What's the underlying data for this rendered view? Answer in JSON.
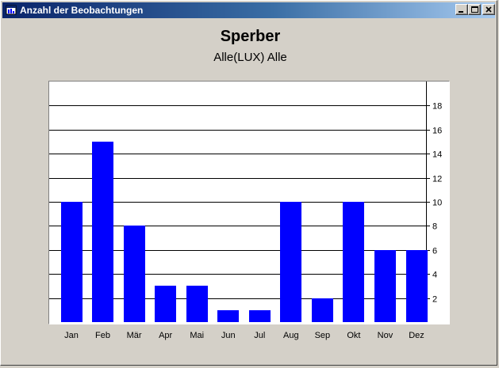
{
  "window": {
    "title": "Anzahl der Beobachtungen",
    "icon": "app-icon",
    "controls": [
      "minimize-icon",
      "maximize-icon",
      "close-icon"
    ]
  },
  "colors": {
    "bar": "#0000ff",
    "plot_background": "#ffffff",
    "gridline": "#000000",
    "window_background": "#d4d0c8"
  },
  "chart_data": {
    "type": "bar",
    "title": "Sperber",
    "subtitle": "Alle(LUX) Alle",
    "categories": [
      "Jan",
      "Feb",
      "Mär",
      "Apr",
      "Mai",
      "Jun",
      "Jul",
      "Aug",
      "Sep",
      "Okt",
      "Nov",
      "Dez"
    ],
    "values": [
      10,
      15,
      8,
      3,
      3,
      1,
      1,
      10,
      2,
      10,
      6,
      6
    ],
    "ylim": [
      0,
      20
    ],
    "yticks": [
      2,
      4,
      6,
      8,
      10,
      12,
      14,
      16,
      18
    ],
    "ytick_labels": [
      "2",
      "4",
      "6",
      "8",
      "10",
      "12",
      "14",
      "16",
      "18"
    ],
    "y_axis_position": "right",
    "grid": true,
    "legend": "none"
  }
}
